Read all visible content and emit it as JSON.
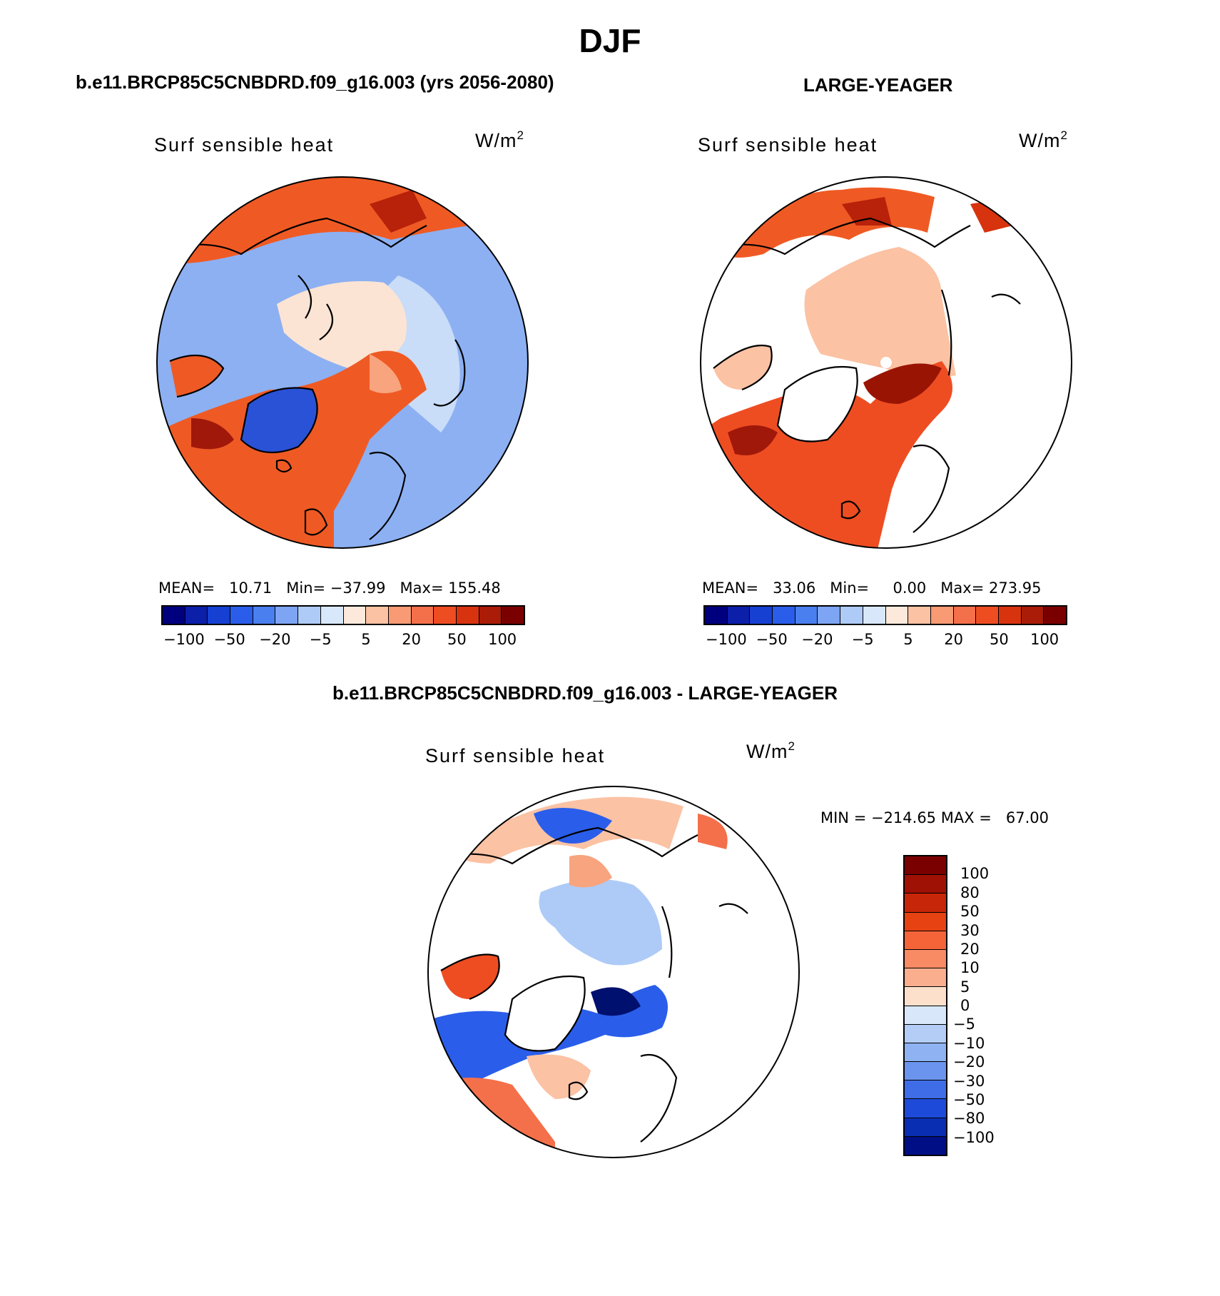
{
  "figure": {
    "title": "DJF"
  },
  "panels": [
    {
      "case_title": "b.e11.BRCP85C5CNBDRD.f09_g16.003 (yrs 2056-2080)",
      "plot_title": "Surf sensible heat",
      "units": "W/m",
      "units_sup": "2",
      "stats": {
        "mean_label": "MEAN=",
        "mean": "10.71",
        "min_label": "Min=",
        "min": "−37.99",
        "max_label": "Max=",
        "max": "155.48"
      }
    },
    {
      "case_title": "LARGE-YEAGER",
      "plot_title": "Surf sensible heat",
      "units": "W/m",
      "units_sup": "2",
      "stats": {
        "mean_label": "MEAN=",
        "mean": "33.06",
        "min_label": "Min=",
        "min": "0.00",
        "max_label": "Max=",
        "max": "273.95"
      }
    },
    {
      "case_title": "b.e11.BRCP85C5CNBDRD.f09_g16.003 - LARGE-YEAGER",
      "plot_title": "Surf sensible heat",
      "units": "W/m",
      "units_sup": "2",
      "stats_line": "MIN = −214.65 MAX =   67.00"
    }
  ],
  "horizontal_colorbar": {
    "colors": [
      "#00007f",
      "#0b1fa8",
      "#1540d2",
      "#2a5eea",
      "#4a7fef",
      "#7ea4f4",
      "#aecbf7",
      "#d8e8fa",
      "#fde9dc",
      "#fbc2a4",
      "#f89a74",
      "#f4704a",
      "#ee4d22",
      "#d8330f",
      "#aa1c07",
      "#7a0000"
    ],
    "labels": [
      "−100",
      "−50",
      "−20",
      "−5",
      "5",
      "20",
      "50",
      "100"
    ]
  },
  "vertical_colorbar": {
    "colors": [
      "#7a0000",
      "#9e1104",
      "#c82608",
      "#e64212",
      "#f46438",
      "#f88a64",
      "#fbae8e",
      "#fde0cc",
      "#d8e8fa",
      "#b4cdf6",
      "#8fb3f2",
      "#6b94ee",
      "#3f6de8",
      "#1d4ad8",
      "#0a2eb2",
      "#000e86"
    ],
    "labels": [
      "100",
      "80",
      "50",
      "30",
      "20",
      "10",
      "5",
      "0",
      "−5",
      "−10",
      "−20",
      "−30",
      "−50",
      "−80",
      "−100"
    ]
  },
  "map_colors": {
    "ocean_left": "#8cb0f2",
    "ocean_left_light": "#c9dcf8",
    "arctic_left": "#fbe4d4",
    "deep_blue": "#2a52d6",
    "warm": "#ef5a24",
    "warm_dark": "#b8220a",
    "warm_light": "#f8a47e",
    "land": "#ffffff",
    "pole_marker": "#ffffff"
  }
}
